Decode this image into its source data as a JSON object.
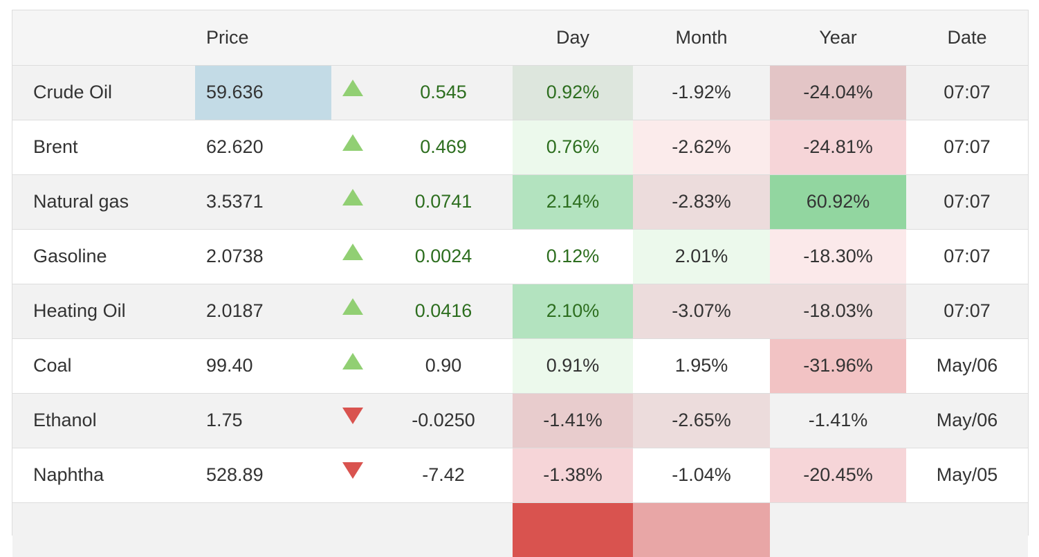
{
  "headers": {
    "name": "",
    "price": "Price",
    "arrow": "",
    "change": "",
    "day": "Day",
    "month": "Month",
    "year": "Year",
    "date": "Date"
  },
  "rows": [
    {
      "name": "Crude Oil",
      "price": "59.636",
      "direction": "up",
      "change": "0.545",
      "day": "0.92%",
      "month": "-1.92%",
      "year": "-24.04%",
      "date": "07:07",
      "day_bg": "#dde6dd",
      "month_bg": "",
      "year_bg": "#e3c5c6"
    },
    {
      "name": "Brent",
      "price": "62.620",
      "direction": "up",
      "change": "0.469",
      "day": "0.76%",
      "month": "-2.62%",
      "year": "-24.81%",
      "date": "07:07",
      "day_bg": "#ecf9ec",
      "month_bg": "#fbebeb",
      "year_bg": "#f6d5d8"
    },
    {
      "name": "Natural gas",
      "price": "3.5371",
      "direction": "up",
      "change": "0.0741",
      "day": "2.14%",
      "month": "-2.83%",
      "year": "60.92%",
      "date": "07:07",
      "day_bg": "#b3e3bf",
      "month_bg": "#ecdcdc",
      "year_bg": "#92d6a0"
    },
    {
      "name": "Gasoline",
      "price": "2.0738",
      "direction": "up",
      "change": "0.0024",
      "day": "0.12%",
      "month": "2.01%",
      "year": "-18.30%",
      "date": "07:07",
      "day_bg": "",
      "month_bg": "#ecf9ec",
      "year_bg": "#fbe9ea"
    },
    {
      "name": "Heating Oil",
      "price": "2.0187",
      "direction": "up",
      "change": "0.0416",
      "day": "2.10%",
      "month": "-3.07%",
      "year": "-18.03%",
      "date": "07:07",
      "day_bg": "#b3e3bf",
      "month_bg": "#ecdcdc",
      "year_bg": "#ecdcdc"
    },
    {
      "name": "Coal",
      "price": "99.40",
      "direction": "up",
      "change": "0.90",
      "day": "0.91%",
      "month": "1.95%",
      "year": "-31.96%",
      "date": "May/06",
      "day_bg": "#ecf9ec",
      "month_bg": "",
      "year_bg": "#f2c3c4"
    },
    {
      "name": "Ethanol",
      "price": "1.75",
      "direction": "down",
      "change": "-0.0250",
      "day": "-1.41%",
      "month": "-2.65%",
      "year": "-1.41%",
      "date": "May/06",
      "day_bg": "#e8cccd",
      "month_bg": "#ecdcdc",
      "year_bg": ""
    },
    {
      "name": "Naphtha",
      "price": "528.89",
      "direction": "down",
      "change": "-7.42",
      "day": "-1.38%",
      "month": "-1.04%",
      "year": "-20.45%",
      "date": "May/05",
      "day_bg": "#f6d5d8",
      "month_bg": "",
      "year_bg": "#f6d5d8"
    },
    {
      "name": "",
      "price": "",
      "direction": "",
      "change": "",
      "day": "",
      "month": "",
      "year": "",
      "date": "",
      "day_bg": "#d9534f",
      "month_bg": "#e8a6a6",
      "year_bg": ""
    }
  ],
  "colors": {
    "positive_text": "#2d6e1f",
    "up_arrow": "#91cf73",
    "down_arrow": "#d9534f",
    "selected_price_bg": "#c3dbe6"
  }
}
